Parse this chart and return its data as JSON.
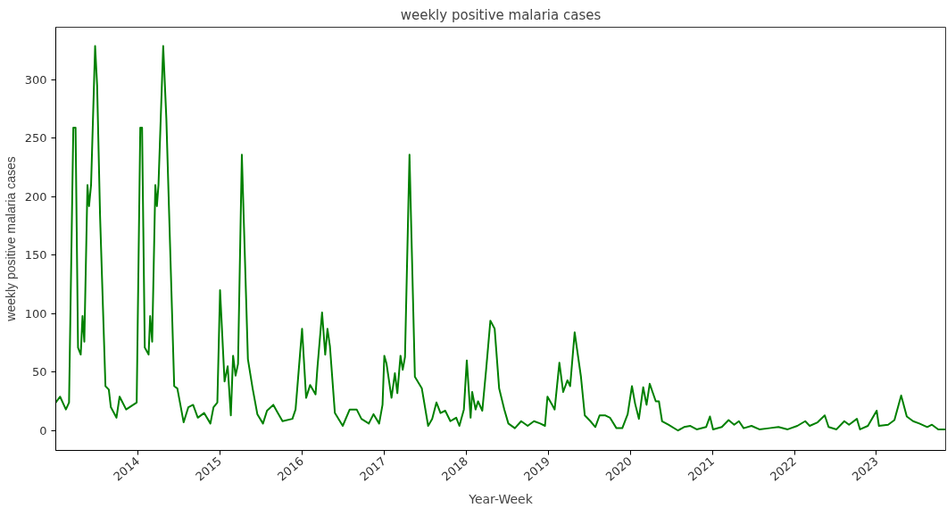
{
  "chart_data": {
    "type": "line",
    "title": "weekly positive malaria cases",
    "xlabel": "Year-Week",
    "ylabel": "weekly positive malaria cases",
    "x": [
      "2013-01-01",
      "2013-01-20",
      "2013-02-15",
      "2013-03-01",
      "2013-03-20",
      "2013-03-30",
      "2013-04-10",
      "2013-04-22",
      "2013-04-30",
      "2013-05-08",
      "2013-05-22",
      "2013-05-29",
      "2013-06-07",
      "2013-06-25",
      "2013-07-04",
      "2013-07-17",
      "2013-08-10",
      "2013-08-25",
      "2013-09-03",
      "2013-09-28",
      "2013-10-12",
      "2013-11-10",
      "2013-12-27",
      "2014-01-12",
      "2014-01-20",
      "2014-02-01",
      "2014-02-18",
      "2014-02-25",
      "2014-03-06",
      "2014-03-20",
      "2014-03-27",
      "2014-04-03",
      "2014-04-24",
      "2014-05-08",
      "2014-06-12",
      "2014-06-26",
      "2014-07-24",
      "2014-08-14",
      "2014-09-04",
      "2014-09-25",
      "2014-10-23",
      "2014-11-20",
      "2014-12-04",
      "2014-12-21",
      "2015-01-02",
      "2015-01-22",
      "2015-02-05",
      "2015-02-19",
      "2015-03-01",
      "2015-03-12",
      "2015-03-23",
      "2015-04-09",
      "2015-05-06",
      "2015-05-27",
      "2015-06-17",
      "2015-07-12",
      "2015-07-30",
      "2015-08-27",
      "2015-09-16",
      "2015-10-07",
      "2015-11-20",
      "2015-12-04",
      "2016-01-02",
      "2016-01-20",
      "2016-02-07",
      "2016-03-02",
      "2016-03-10",
      "2016-03-31",
      "2016-04-14",
      "2016-04-24",
      "2016-05-05",
      "2016-05-27",
      "2016-07-01",
      "2016-08-01",
      "2016-09-01",
      "2016-09-22",
      "2016-10-25",
      "2016-11-15",
      "2016-12-10",
      "2016-12-25",
      "2017-01-02",
      "2017-01-12",
      "2017-02-03",
      "2017-02-18",
      "2017-03-01",
      "2017-03-15",
      "2017-03-25",
      "2017-04-04",
      "2017-04-24",
      "2017-05-18",
      "2017-06-18",
      "2017-07-16",
      "2017-08-03",
      "2017-08-22",
      "2017-09-09",
      "2017-09-30",
      "2017-10-23",
      "2017-11-18",
      "2017-12-02",
      "2017-12-22",
      "2018-01-04",
      "2018-01-21",
      "2018-01-28",
      "2018-02-12",
      "2018-02-23",
      "2018-03-14",
      "2018-03-31",
      "2018-04-19",
      "2018-05-08",
      "2018-05-28",
      "2018-06-20",
      "2018-07-08",
      "2018-08-06",
      "2018-09-03",
      "2018-10-02",
      "2018-10-30",
      "2018-11-27",
      "2018-12-18",
      "2018-12-29",
      "2019-01-19",
      "2019-01-30",
      "2019-02-20",
      "2019-03-09",
      "2019-03-28",
      "2019-04-09",
      "2019-04-29",
      "2019-05-27",
      "2019-06-13",
      "2019-07-08",
      "2019-07-30",
      "2019-08-18",
      "2019-09-11",
      "2019-10-03",
      "2019-11-01",
      "2019-11-27",
      "2019-12-21",
      "2020-01-09",
      "2020-01-23",
      "2020-02-09",
      "2020-02-28",
      "2020-03-14",
      "2020-03-28",
      "2020-04-24",
      "2020-05-08",
      "2020-05-22",
      "2020-06-19",
      "2020-08-01",
      "2020-08-28",
      "2020-09-25",
      "2020-10-23",
      "2020-12-04",
      "2020-12-21",
      "2021-01-04",
      "2021-02-12",
      "2021-03-14",
      "2021-04-08",
      "2021-04-29",
      "2021-05-20",
      "2021-06-24",
      "2021-07-29",
      "2021-09-10",
      "2021-10-22",
      "2021-12-02",
      "2022-01-14",
      "2022-02-18",
      "2022-03-10",
      "2022-04-14",
      "2022-05-16",
      "2022-06-02",
      "2022-07-07",
      "2022-08-11",
      "2022-09-01",
      "2022-10-06",
      "2022-10-20",
      "2022-11-24",
      "2023-01-02",
      "2023-01-12",
      "2023-02-22",
      "2023-03-22",
      "2023-04-21",
      "2023-05-16",
      "2023-06-13",
      "2023-07-11",
      "2023-08-15",
      "2023-09-05",
      "2023-10-03",
      "2023-11-04"
    ],
    "series": [
      {
        "color": "#008000",
        "values": [
          24,
          29,
          18,
          24,
          259,
          259,
          71,
          65,
          98,
          76,
          210,
          192,
          210,
          329,
          295,
          184,
          38,
          35,
          20,
          11,
          29,
          18,
          24,
          259,
          259,
          71,
          65,
          98,
          76,
          210,
          192,
          210,
          329,
          267,
          38,
          36,
          7,
          20,
          22,
          11,
          15,
          6,
          20,
          24,
          120,
          42,
          55,
          13,
          64,
          47,
          57,
          236,
          61,
          36,
          14,
          6,
          17,
          22,
          15,
          8,
          10,
          18,
          87,
          28,
          39,
          31,
          53,
          101,
          65,
          87,
          72,
          15,
          4,
          18,
          18,
          10,
          6,
          14,
          6,
          22,
          64,
          57,
          28,
          49,
          32,
          64,
          52,
          63,
          236,
          46,
          36,
          4,
          10,
          24,
          15,
          17,
          8,
          11,
          4,
          18,
          60,
          11,
          33,
          18,
          25,
          17,
          52,
          94,
          87,
          36,
          18,
          6,
          2,
          8,
          4,
          8,
          6,
          4,
          29,
          22,
          18,
          58,
          33,
          43,
          38,
          84,
          46,
          13,
          8,
          3,
          13,
          13,
          11,
          2,
          2,
          14,
          38,
          23,
          10,
          37,
          22,
          40,
          25,
          25,
          8,
          5,
          0,
          3,
          4,
          1,
          3,
          12,
          1,
          3,
          9,
          5,
          8,
          2,
          4,
          1,
          2,
          3,
          1,
          4,
          8,
          4,
          7,
          13,
          3,
          1,
          8,
          5,
          10,
          1,
          4,
          17,
          4,
          5,
          9,
          30,
          12,
          8,
          6,
          3,
          5,
          1,
          1
        ]
      }
    ],
    "xlim": [
      "2013-01-01",
      "2023-11-05"
    ],
    "xticks": [
      {
        "value": "2014-01-01",
        "label": "2014"
      },
      {
        "value": "2015-01-01",
        "label": "2015"
      },
      {
        "value": "2016-01-01",
        "label": "2016"
      },
      {
        "value": "2017-01-01",
        "label": "2017"
      },
      {
        "value": "2018-01-01",
        "label": "2018"
      },
      {
        "value": "2019-01-01",
        "label": "2019"
      },
      {
        "value": "2020-01-01",
        "label": "2020"
      },
      {
        "value": "2021-01-01",
        "label": "2021"
      },
      {
        "value": "2022-01-01",
        "label": "2022"
      },
      {
        "value": "2023-01-01",
        "label": "2023"
      }
    ],
    "ylim": [
      -17,
      345
    ],
    "yticks": [
      0,
      50,
      100,
      150,
      200,
      250,
      300
    ],
    "grid": false,
    "line_style": "solid",
    "marker": "none"
  }
}
